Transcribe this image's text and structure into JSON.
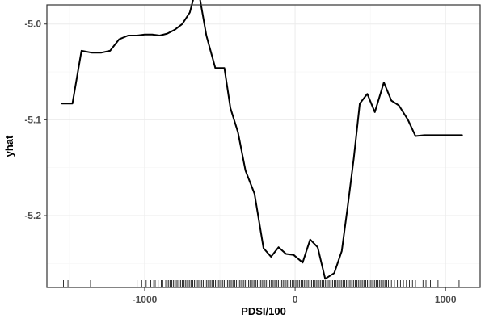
{
  "chart_data": {
    "type": "line",
    "title": "",
    "xlabel": "PDSI/100",
    "ylabel": "yhat",
    "xlim": [
      -1650,
      1230
    ],
    "ylim": [
      -5.275,
      -4.98
    ],
    "x_ticks": [
      -1000,
      0,
      1000
    ],
    "x_tick_labels": [
      "-1000",
      "0",
      "1000"
    ],
    "y_ticks": [
      -5.2,
      -5.1,
      -5.0
    ],
    "y_tick_labels": [
      "-5.2",
      "-5.1",
      "-5.0"
    ],
    "grid": true,
    "legend": "none",
    "colors": {
      "line": "#000000",
      "grid": "#ebebeb",
      "frame": "#333333"
    },
    "series": [
      {
        "x": [
          -1550,
          -1480,
          -1420,
          -1350,
          -1290,
          -1230,
          -1170,
          -1110,
          -1050,
          -1000,
          -950,
          -900,
          -850,
          -800,
          -750,
          -700,
          -650,
          -590,
          -530,
          -470,
          -430,
          -380,
          -330,
          -270,
          -210,
          -160,
          -110,
          -60,
          -10,
          50,
          100,
          150,
          200,
          260,
          310,
          350,
          390,
          430,
          480,
          530,
          590,
          640,
          690,
          750,
          800,
          860,
          910,
          970,
          1030,
          1080,
          1110
        ],
        "y": [
          -5.083,
          -5.083,
          -5.028,
          -5.03,
          -5.03,
          -5.028,
          -5.016,
          -5.012,
          -5.012,
          -5.011,
          -5.011,
          -5.012,
          -5.01,
          -5.006,
          -5.0,
          -4.988,
          -4.958,
          -5.012,
          -5.046,
          -5.046,
          -5.088,
          -5.113,
          -5.153,
          -5.177,
          -5.234,
          -5.243,
          -5.233,
          -5.24,
          -5.241,
          -5.249,
          -5.225,
          -5.233,
          -5.266,
          -5.26,
          -5.237,
          -5.19,
          -5.14,
          -5.083,
          -5.073,
          -5.092,
          -5.061,
          -5.08,
          -5.085,
          -5.1,
          -5.117,
          -5.116,
          -5.116,
          -5.116,
          -5.116,
          -5.116,
          -5.116
        ]
      }
    ],
    "rug_x": [
      -1540,
      -1510,
      -1470,
      -1360,
      -1050,
      -1020,
      -990,
      -960,
      -940,
      -930,
      -910,
      -890,
      -880,
      -860,
      -850,
      -840,
      -830,
      -820,
      -810,
      -800,
      -790,
      -780,
      -770,
      -760,
      -750,
      -740,
      -730,
      -720,
      -710,
      -700,
      -690,
      -680,
      -670,
      -660,
      -650,
      -640,
      -630,
      -620,
      -610,
      -600,
      -590,
      -580,
      -570,
      -560,
      -550,
      -540,
      -530,
      -520,
      -510,
      -500,
      -490,
      -480,
      -470,
      -460,
      -450,
      -440,
      -430,
      -420,
      -410,
      -400,
      -390,
      -380,
      -370,
      -360,
      -350,
      -340,
      -330,
      -320,
      -310,
      -300,
      -290,
      -280,
      -270,
      -260,
      -250,
      -240,
      -230,
      -220,
      -210,
      -200,
      -190,
      -180,
      -170,
      -160,
      -150,
      -140,
      -130,
      -120,
      -110,
      -100,
      -90,
      -80,
      -70,
      -60,
      -50,
      -40,
      -30,
      -20,
      -10,
      0,
      10,
      20,
      30,
      40,
      50,
      60,
      70,
      80,
      90,
      100,
      110,
      120,
      130,
      140,
      150,
      160,
      170,
      180,
      190,
      200,
      210,
      220,
      230,
      240,
      250,
      260,
      270,
      280,
      290,
      300,
      310,
      320,
      330,
      340,
      350,
      360,
      370,
      380,
      390,
      400,
      410,
      420,
      430,
      440,
      450,
      460,
      470,
      480,
      490,
      500,
      510,
      520,
      530,
      540,
      550,
      560,
      570,
      580,
      590,
      600,
      610,
      620,
      640,
      660,
      680,
      700,
      720,
      740,
      760,
      780,
      800,
      830,
      850,
      870,
      900,
      950,
      1090
    ]
  }
}
